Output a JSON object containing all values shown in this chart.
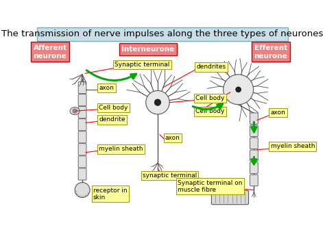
{
  "title": "The transmission of nerve impulses along the three types of neurones",
  "title_bg": "#c8dfe8",
  "title_fontsize": 9.5,
  "bg_color": "#ffffff",
  "labels": {
    "afferent": "Afferent\nneurone",
    "interneurone": "Interneurone",
    "efferent": "Efferent\nneurone",
    "synaptic_terminal": "Synaptic terminal",
    "dendrites": "dendrites",
    "cell_body1": "Cell body",
    "cell_body2": "Cell body",
    "cell_body3": "Cell body",
    "axon1": "axon",
    "axon2": "axon",
    "axon3": "axon",
    "dendrite": "dendrite",
    "synaptic_terminal2": "synaptic terminal",
    "myelin_sheath1": "myelin sheath",
    "myelin_sheath2": "myelin sheath",
    "receptor": "receptor in\nskin",
    "synaptic_muscle": "Synaptic terminal on\nmuscle fibre"
  },
  "red_box_color": "#f08080",
  "yellow_box_color": "#ffff99",
  "yellow_box_edge": "#999900",
  "label_fontsize": 6.5,
  "header_fontsize": 8.5
}
